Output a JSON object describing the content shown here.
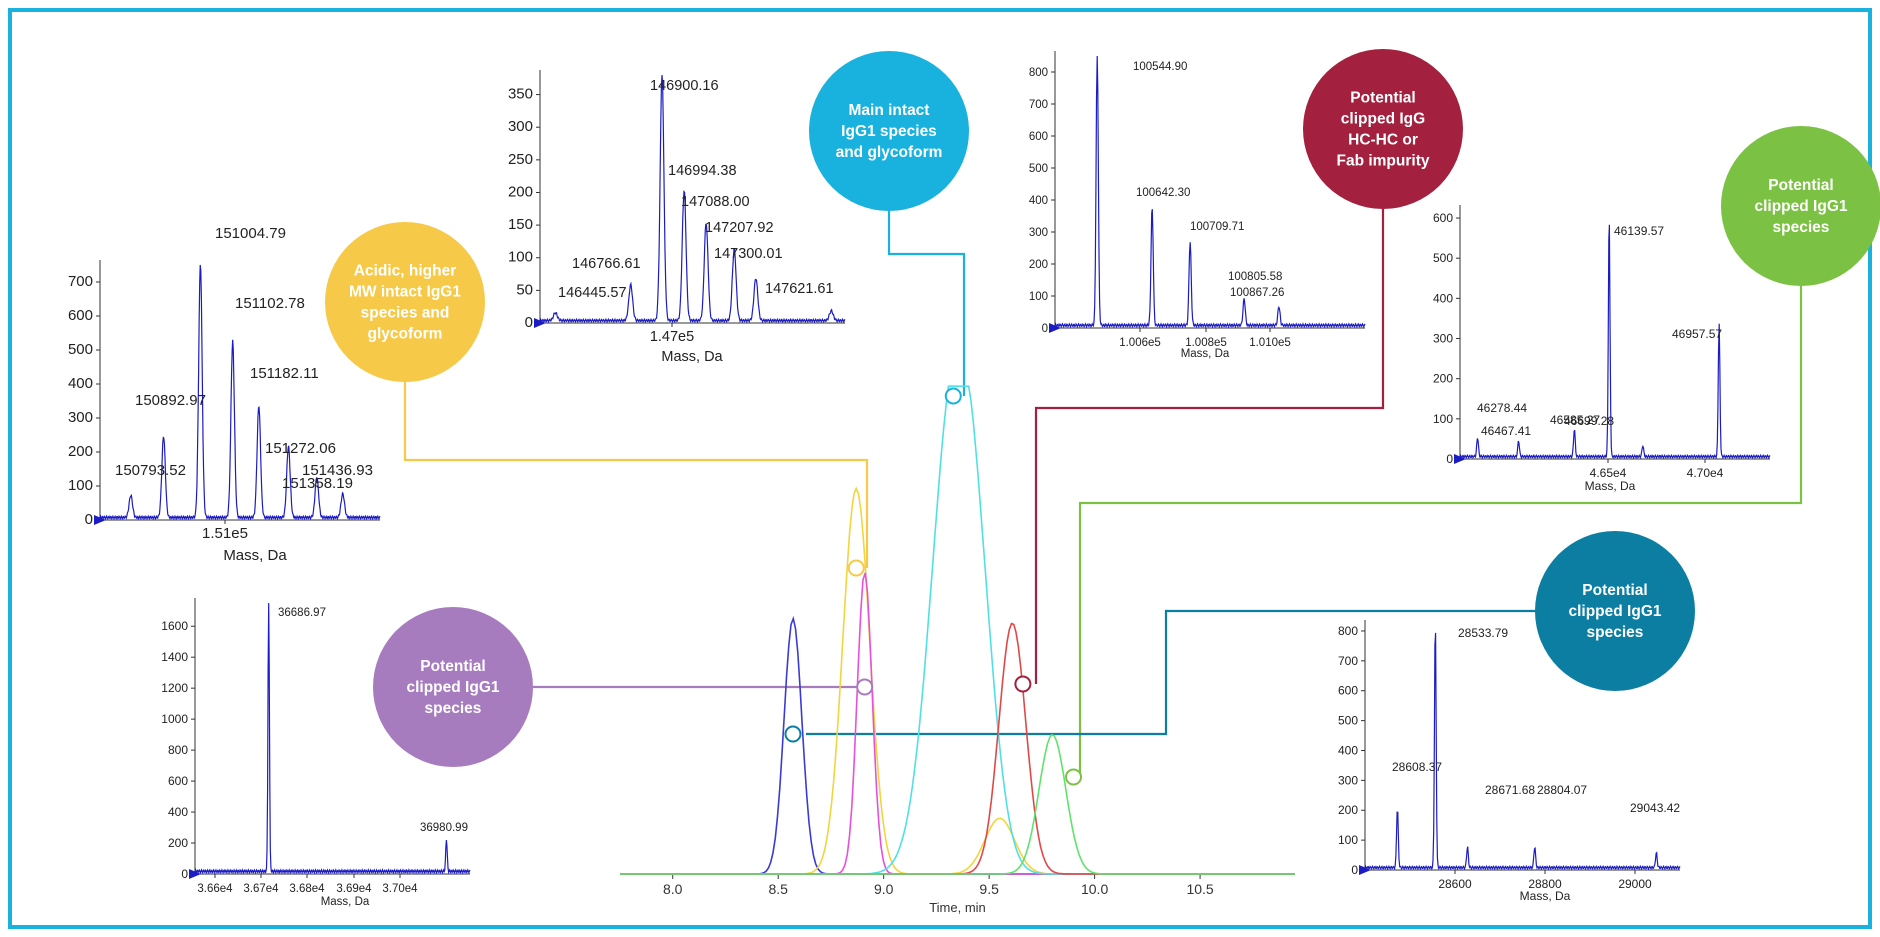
{
  "colors": {
    "frame": "#19b1dd",
    "spectrum": "#1c1cc4",
    "axis": "#333333",
    "yellow": "#f7c948",
    "purple": "#a77cbf",
    "cyan": "#19b1dd",
    "crimson": "#a3213e",
    "green": "#7bc143",
    "teal": "#0b7ea2"
  },
  "callouts": [
    {
      "id": "yellow",
      "lines": [
        "Acidic, higher",
        "MW intact IgG1",
        "species and",
        "glycoform"
      ]
    },
    {
      "id": "purple",
      "lines": [
        "Potential",
        "clipped IgG1",
        "species"
      ]
    },
    {
      "id": "cyan",
      "lines": [
        "Main intact",
        "IgG1 species",
        "and glycoform"
      ]
    },
    {
      "id": "crimson",
      "lines": [
        "Potential",
        "clipped IgG",
        "HC-HC or",
        "Fab impurity"
      ]
    },
    {
      "id": "green",
      "lines": [
        "Potential",
        "clipped IgG1",
        "species"
      ]
    },
    {
      "id": "teal",
      "lines": [
        "Potential",
        "clipped IgG1",
        "species"
      ]
    }
  ],
  "chart_data": [
    {
      "type": "line",
      "title": "",
      "xlabel": "Time, min",
      "ylabel": "",
      "xlim": [
        7.75,
        10.95
      ],
      "xticks": [
        8.0,
        8.5,
        9.0,
        9.5,
        10.0,
        10.5
      ],
      "series": [
        {
          "color": "blue",
          "peaks": [
            {
              "x": 8.57,
              "height": 0.55
            }
          ]
        },
        {
          "color": "yellow",
          "peaks": [
            {
              "x": 8.87,
              "height": 0.83
            }
          ]
        },
        {
          "color": "magenta",
          "peaks": [
            {
              "x": 8.91,
              "height": 0.65
            }
          ]
        },
        {
          "color": "cyan",
          "peaks": [
            {
              "x": 9.33,
              "height": 1.0
            }
          ]
        },
        {
          "color": "red",
          "peaks": [
            {
              "x": 9.61,
              "height": 0.54
            }
          ]
        },
        {
          "color": "green",
          "peaks": [
            {
              "x": 9.8,
              "height": 0.3
            }
          ]
        }
      ],
      "markers": [
        {
          "callout": "yellow",
          "x": 8.87
        },
        {
          "callout": "purple",
          "x": 8.91
        },
        {
          "callout": "cyan",
          "x": 9.33
        },
        {
          "callout": "crimson",
          "x": 9.66
        },
        {
          "callout": "green",
          "x": 9.9
        },
        {
          "callout": "teal",
          "x": 8.57
        }
      ]
    },
    {
      "type": "line",
      "name": "yellow-spectrum",
      "xlabel": "Mass, Da",
      "xticks": [
        "1.51e5"
      ],
      "ylim": [
        0,
        750
      ],
      "yticks": [
        0,
        100,
        200,
        300,
        400,
        500,
        600,
        700
      ],
      "peaks": [
        {
          "label": "150793.52",
          "x": 150793.52,
          "y": 65
        },
        {
          "label": "150892.97",
          "x": 150892.97,
          "y": 240
        },
        {
          "label": "151004.79",
          "x": 151004.79,
          "y": 750
        },
        {
          "label": "151102.78",
          "x": 151102.78,
          "y": 520
        },
        {
          "label": "151182.11",
          "x": 151182.11,
          "y": 330
        },
        {
          "label": "151272.06",
          "x": 151272.06,
          "y": 210
        },
        {
          "label": "151358.19",
          "x": 151358.19,
          "y": 120
        },
        {
          "label": "151436.93",
          "x": 151436.93,
          "y": 70
        }
      ]
    },
    {
      "type": "line",
      "name": "cyan-spectrum",
      "xlabel": "Mass, Da",
      "xticks": [
        "1.47e5"
      ],
      "ylim": [
        0,
        380
      ],
      "yticks": [
        0,
        50,
        100,
        150,
        200,
        250,
        300,
        350
      ],
      "peaks": [
        {
          "label": "146445.57",
          "x": 146445.57,
          "y": 12
        },
        {
          "label": "146766.61",
          "x": 146766.61,
          "y": 55
        },
        {
          "label": "146900.16",
          "x": 146900.16,
          "y": 380
        },
        {
          "label": "146994.38",
          "x": 146994.38,
          "y": 200
        },
        {
          "label": "147088.00",
          "x": 147088.0,
          "y": 150
        },
        {
          "label": "147207.92",
          "x": 147207.92,
          "y": 110
        },
        {
          "label": "147300.01",
          "x": 147300.01,
          "y": 65
        },
        {
          "label": "147621.61",
          "x": 147621.61,
          "y": 15
        }
      ]
    },
    {
      "type": "line",
      "name": "crimson-spectrum",
      "xlabel": "Mass, Da",
      "xticks": [
        "1.006e5",
        "1.008e5",
        "1.010e5"
      ],
      "ylim": [
        0,
        850
      ],
      "yticks": [
        0,
        100,
        200,
        300,
        400,
        500,
        600,
        700,
        800
      ],
      "peaks": [
        {
          "label": "100544.90",
          "x": 100544.9,
          "y": 850
        },
        {
          "label": "100642.30",
          "x": 100642.3,
          "y": 370
        },
        {
          "label": "100709.71",
          "x": 100709.71,
          "y": 260
        },
        {
          "label": "100805.58",
          "x": 100805.58,
          "y": 85
        },
        {
          "label": "100867.26",
          "x": 100867.26,
          "y": 60
        }
      ]
    },
    {
      "type": "line",
      "name": "green-spectrum",
      "xlabel": "Mass, Da",
      "xticks": [
        "4.65e4",
        "4.70e4"
      ],
      "ylim": [
        0,
        620
      ],
      "yticks": [
        0,
        100,
        200,
        300,
        400,
        500,
        600
      ],
      "peaks": [
        {
          "label": "46139.57",
          "x": 46139.57,
          "y": 48
        },
        {
          "label": "46278.44",
          "x": 46278.44,
          "y": 40
        },
        {
          "label": "46467.41",
          "x": 46467.41,
          "y": 70
        },
        {
          "label": "46585.27",
          "x": 46585.27,
          "y": 600
        },
        {
          "label": "46699.28",
          "x": 46699.28,
          "y": 28
        },
        {
          "label": "46957.57",
          "x": 46957.57,
          "y": 330
        }
      ]
    },
    {
      "type": "line",
      "name": "purple-spectrum",
      "xlabel": "Mass, Da",
      "xticks": [
        "3.66e4",
        "3.67e4",
        "3.68e4",
        "3.69e4",
        "3.70e4"
      ],
      "ylim": [
        0,
        1750
      ],
      "yticks": [
        0,
        200,
        400,
        600,
        800,
        1000,
        1200,
        1400,
        1600
      ],
      "peaks": [
        {
          "label": "36686.97",
          "x": 36686.97,
          "y": 1750
        },
        {
          "label": "36980.99",
          "x": 36980.99,
          "y": 210
        }
      ]
    },
    {
      "type": "line",
      "name": "teal-spectrum",
      "xlabel": "Mass, Da",
      "xticks": [
        "28600",
        "28800",
        "29000"
      ],
      "ylim": [
        0,
        820
      ],
      "yticks": [
        0,
        100,
        200,
        300,
        400,
        500,
        600,
        700,
        800
      ],
      "peaks": [
        {
          "label": "28533.79",
          "x": 28533.79,
          "y": 200
        },
        {
          "label": "28608.37",
          "x": 28608.37,
          "y": 820
        },
        {
          "label": "28671.68",
          "x": 28671.68,
          "y": 70
        },
        {
          "label": "28804.07",
          "x": 28804.07,
          "y": 70
        },
        {
          "label": "29043.42",
          "x": 29043.42,
          "y": 50
        }
      ]
    }
  ]
}
